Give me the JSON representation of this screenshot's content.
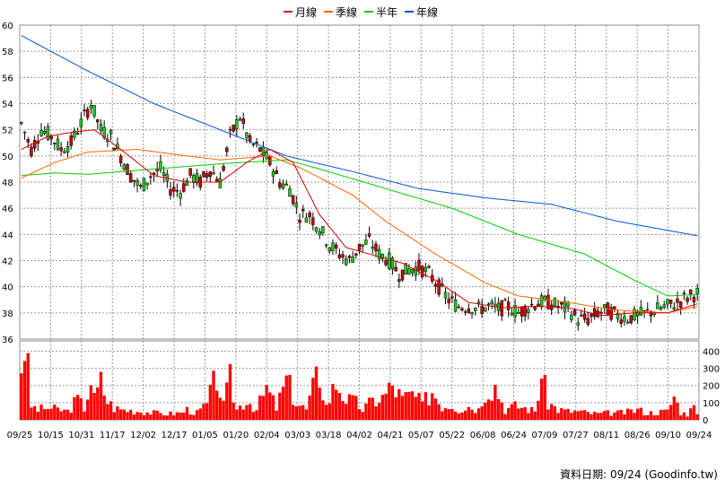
{
  "legend": [
    {
      "name": "月線",
      "color": "#dd0000"
    },
    {
      "name": "季線",
      "color": "#ff6600"
    },
    {
      "name": "半年",
      "color": "#00cc00"
    },
    {
      "name": "年線",
      "color": "#0055cc"
    }
  ],
  "footer": "資料日期: 09/24  (Goodinfo.tw)",
  "chart_data": [
    {
      "type": "candlestick",
      "y_ticks": [
        "60",
        "58",
        "56",
        "54",
        "52",
        "50",
        "48",
        "46",
        "44",
        "42",
        "40",
        "38",
        "36"
      ],
      "ylim": [
        36,
        60
      ],
      "x_ticks": [
        "09/25",
        "10/15",
        "10/31",
        "11/17",
        "12/02",
        "12/17",
        "01/05",
        "01/20",
        "02/04",
        "03/03",
        "03/18",
        "04/02",
        "04/21",
        "05/07",
        "05/22",
        "06/08",
        "06/24",
        "07/09",
        "07/27",
        "08/11",
        "08/26",
        "09/10",
        "09/24"
      ],
      "grid": true,
      "legend_position": "top-center",
      "colors": {
        "up": "#22cc22",
        "down": "#cc0000",
        "wick": "#000000"
      },
      "price_anchors": [
        [
          0,
          52.5
        ],
        [
          3,
          50.5
        ],
        [
          6,
          52.0
        ],
        [
          9,
          51.5
        ],
        [
          12,
          50.5
        ],
        [
          15,
          51.0
        ],
        [
          18,
          52.5
        ],
        [
          21,
          54.0
        ],
        [
          24,
          52.0
        ],
        [
          27,
          51.5
        ],
        [
          30,
          50.0
        ],
        [
          33,
          48.5
        ],
        [
          36,
          47.5
        ],
        [
          39,
          48.5
        ],
        [
          42,
          49.0
        ],
        [
          45,
          47.5
        ],
        [
          48,
          47.3
        ],
        [
          51,
          48.5
        ],
        [
          54,
          48.0
        ],
        [
          57,
          49.0
        ],
        [
          60,
          48.0
        ],
        [
          63,
          51.5
        ],
        [
          66,
          53.0
        ],
        [
          69,
          51.0
        ],
        [
          72,
          50.5
        ],
        [
          75,
          49.5
        ],
        [
          78,
          48.0
        ],
        [
          81,
          47.5
        ],
        [
          84,
          45.5
        ],
        [
          87,
          45.5
        ],
        [
          90,
          44.5
        ],
        [
          93,
          43.2
        ],
        [
          96,
          42.5
        ],
        [
          99,
          42.0
        ],
        [
          102,
          43.0
        ],
        [
          105,
          43.5
        ],
        [
          108,
          42.5
        ],
        [
          111,
          42.0
        ],
        [
          114,
          41.0
        ],
        [
          117,
          41.3
        ],
        [
          120,
          41.5
        ],
        [
          123,
          41.0
        ],
        [
          126,
          40.0
        ],
        [
          129,
          39.0
        ],
        [
          132,
          38.5
        ],
        [
          135,
          38.5
        ],
        [
          138,
          38.3
        ],
        [
          141,
          38.5
        ],
        [
          144,
          38.3
        ],
        [
          147,
          38.5
        ],
        [
          150,
          38.0
        ],
        [
          153,
          38.5
        ],
        [
          156,
          38.8
        ],
        [
          159,
          38.8
        ],
        [
          162,
          38.5
        ],
        [
          165,
          38.3
        ],
        [
          168,
          37.5
        ],
        [
          171,
          37.5
        ],
        [
          174,
          38.0
        ],
        [
          177,
          38.2
        ],
        [
          180,
          37.8
        ],
        [
          183,
          37.6
        ],
        [
          186,
          37.8
        ],
        [
          189,
          38.0
        ],
        [
          192,
          38.3
        ],
        [
          195,
          38.5
        ],
        [
          198,
          38.8
        ],
        [
          201,
          39.2
        ],
        [
          204,
          39.5
        ]
      ],
      "candle_count": 205,
      "ma_lines": [
        {
          "name": "年線",
          "color": "#0055cc",
          "points": [
            [
              0,
              59.2
            ],
            [
              20,
              56.5
            ],
            [
              40,
              54.0
            ],
            [
              60,
              52.0
            ],
            [
              80,
              50.0
            ],
            [
              100,
              48.8
            ],
            [
              120,
              47.5
            ],
            [
              140,
              46.8
            ],
            [
              160,
              46.3
            ],
            [
              180,
              45.0
            ],
            [
              204,
              43.9
            ]
          ]
        },
        {
          "name": "半年",
          "color": "#00cc00",
          "points": [
            [
              0,
              48.5
            ],
            [
              10,
              48.7
            ],
            [
              20,
              48.6
            ],
            [
              40,
              49.0
            ],
            [
              60,
              49.4
            ],
            [
              80,
              49.7
            ],
            [
              90,
              49.0
            ],
            [
              110,
              47.5
            ],
            [
              130,
              46.0
            ],
            [
              150,
              44.0
            ],
            [
              170,
              42.5
            ],
            [
              185,
              40.5
            ],
            [
              195,
              39.3
            ],
            [
              204,
              39.4
            ]
          ]
        },
        {
          "name": "季線",
          "color": "#ff6600",
          "points": [
            [
              0,
              48.3
            ],
            [
              10,
              49.5
            ],
            [
              20,
              50.3
            ],
            [
              35,
              50.5
            ],
            [
              50,
              50.0
            ],
            [
              60,
              49.7
            ],
            [
              75,
              50.0
            ],
            [
              85,
              49.0
            ],
            [
              100,
              47.0
            ],
            [
              110,
              45.0
            ],
            [
              125,
              42.5
            ],
            [
              140,
              40.3
            ],
            [
              150,
              39.3
            ],
            [
              165,
              38.8
            ],
            [
              180,
              38.2
            ],
            [
              195,
              38.0
            ],
            [
              204,
              38.5
            ]
          ]
        },
        {
          "name": "月線",
          "color": "#dd0000",
          "points": [
            [
              0,
              50.5
            ],
            [
              8,
              51.5
            ],
            [
              15,
              51.8
            ],
            [
              22,
              52.0
            ],
            [
              30,
              50.5
            ],
            [
              40,
              48.5
            ],
            [
              50,
              48.0
            ],
            [
              60,
              48.0
            ],
            [
              68,
              49.5
            ],
            [
              75,
              50.5
            ],
            [
              82,
              49.5
            ],
            [
              90,
              45.5
            ],
            [
              98,
              43.0
            ],
            [
              105,
              42.5
            ],
            [
              115,
              41.8
            ],
            [
              125,
              40.5
            ],
            [
              135,
              38.8
            ],
            [
              145,
              38.4
            ],
            [
              155,
              38.5
            ],
            [
              165,
              38.4
            ],
            [
              175,
              37.8
            ],
            [
              185,
              38.0
            ],
            [
              195,
              38.0
            ],
            [
              204,
              38.7
            ]
          ]
        }
      ]
    },
    {
      "type": "bar",
      "y_ticks": [
        "400",
        "300",
        "200",
        "100",
        "0"
      ],
      "ylim": [
        0,
        460
      ],
      "bar_count": 205,
      "bar_color": "#ff0000",
      "volume_anchors": [
        [
          0,
          320
        ],
        [
          1,
          460
        ],
        [
          2,
          280
        ],
        [
          3,
          80
        ],
        [
          5,
          60
        ],
        [
          8,
          70
        ],
        [
          11,
          60
        ],
        [
          14,
          50
        ],
        [
          17,
          120
        ],
        [
          19,
          70
        ],
        [
          21,
          240
        ],
        [
          22,
          120
        ],
        [
          24,
          220
        ],
        [
          26,
          110
        ],
        [
          28,
          70
        ],
        [
          30,
          60
        ],
        [
          33,
          55
        ],
        [
          36,
          50
        ],
        [
          40,
          40
        ],
        [
          44,
          35
        ],
        [
          48,
          40
        ],
        [
          50,
          60
        ],
        [
          53,
          40
        ],
        [
          56,
          90
        ],
        [
          59,
          260
        ],
        [
          61,
          80
        ],
        [
          63,
          230
        ],
        [
          65,
          60
        ],
        [
          68,
          120
        ],
        [
          71,
          60
        ],
        [
          74,
          180
        ],
        [
          77,
          70
        ],
        [
          80,
          230
        ],
        [
          83,
          100
        ],
        [
          86,
          60
        ],
        [
          89,
          240
        ],
        [
          90,
          270
        ],
        [
          92,
          80
        ],
        [
          95,
          220
        ],
        [
          98,
          120
        ],
        [
          101,
          100
        ],
        [
          103,
          60
        ],
        [
          106,
          110
        ],
        [
          109,
          130
        ],
        [
          112,
          200
        ],
        [
          115,
          120
        ],
        [
          118,
          150
        ],
        [
          121,
          90
        ],
        [
          124,
          170
        ],
        [
          127,
          80
        ],
        [
          130,
          90
        ],
        [
          132,
          60
        ],
        [
          135,
          80
        ],
        [
          138,
          60
        ],
        [
          140,
          180
        ],
        [
          143,
          200
        ],
        [
          146,
          60
        ],
        [
          149,
          80
        ],
        [
          152,
          70
        ],
        [
          155,
          50
        ],
        [
          157,
          260
        ],
        [
          159,
          100
        ],
        [
          162,
          60
        ],
        [
          165,
          50
        ],
        [
          168,
          50
        ],
        [
          171,
          40
        ],
        [
          174,
          35
        ],
        [
          177,
          40
        ],
        [
          180,
          40
        ],
        [
          183,
          45
        ],
        [
          186,
          60
        ],
        [
          189,
          40
        ],
        [
          192,
          45
        ],
        [
          195,
          50
        ],
        [
          197,
          140
        ],
        [
          199,
          45
        ],
        [
          201,
          30
        ],
        [
          202,
          110
        ],
        [
          203,
          70
        ],
        [
          204,
          30
        ]
      ]
    }
  ]
}
